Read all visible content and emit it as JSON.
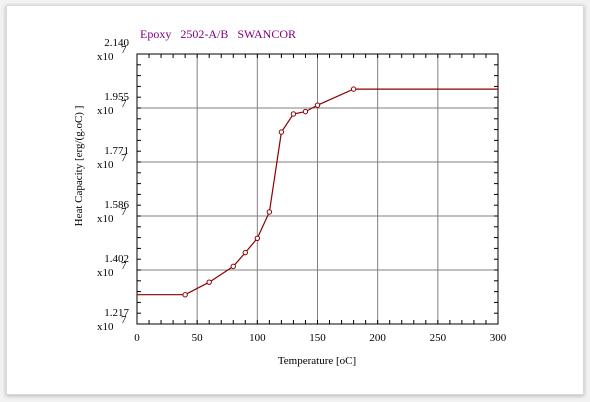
{
  "chart_data": {
    "type": "line",
    "title": "Epoxy   2502-A/B   SWANCOR",
    "xlabel": "Temperature [oC]",
    "ylabel": "Heat Capacity [erg/(g.oC) ]",
    "xlim": [
      0,
      300
    ],
    "ylim": [
      1.217,
      2.14
    ],
    "x_ticks": [
      "0",
      "50",
      "100",
      "150",
      "200",
      "250",
      "300"
    ],
    "y_ticks": [
      "1.217",
      "1.402",
      "1.586",
      "1.771",
      "1.955",
      "2.140"
    ],
    "y_multiplier": "x10",
    "y_exponent": "7",
    "grid": true,
    "series": [
      {
        "color": "#8b0000",
        "x": [
          0,
          40,
          60,
          80,
          90,
          100,
          110,
          120,
          130,
          140,
          150,
          180,
          300
        ],
        "y": [
          1.317,
          1.317,
          1.36,
          1.414,
          1.461,
          1.51,
          1.6,
          1.873,
          1.935,
          1.943,
          1.965,
          2.02,
          2.02
        ],
        "marker_indices": [
          1,
          2,
          3,
          4,
          5,
          6,
          7,
          8,
          9,
          10,
          11
        ]
      }
    ]
  }
}
